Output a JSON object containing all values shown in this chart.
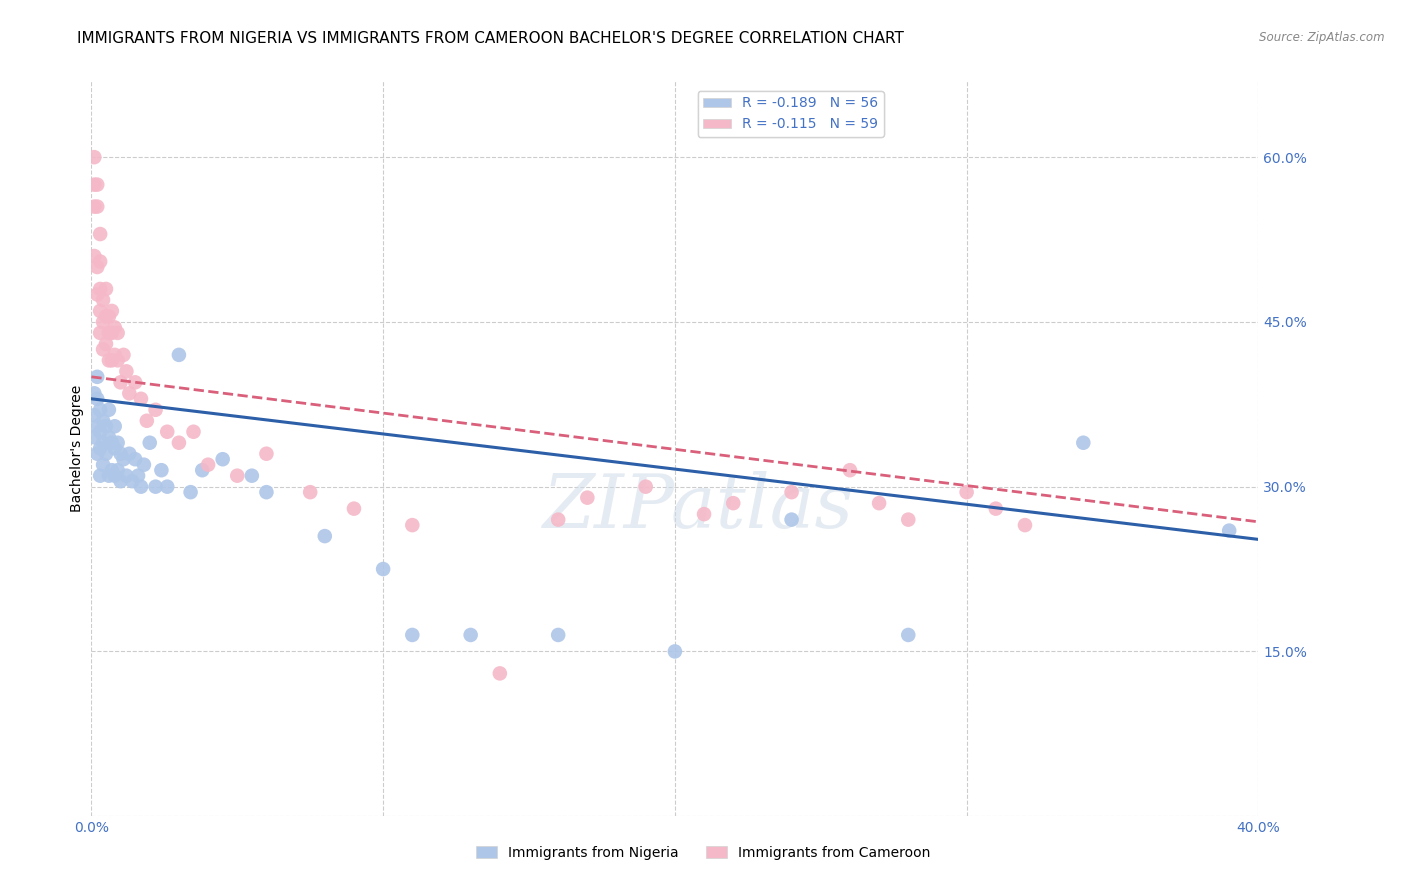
{
  "title": "IMMIGRANTS FROM NIGERIA VS IMMIGRANTS FROM CAMEROON BACHELOR'S DEGREE CORRELATION CHART",
  "source": "Source: ZipAtlas.com",
  "ylabel": "Bachelor's Degree",
  "y_ticks": [
    0.0,
    0.15,
    0.3,
    0.45,
    0.6
  ],
  "y_tick_labels": [
    "",
    "15.0%",
    "30.0%",
    "45.0%",
    "60.0%"
  ],
  "x_lim": [
    0.0,
    0.4
  ],
  "y_lim": [
    0.0,
    0.67
  ],
  "legend_blue_label": "R = -0.189   N = 56",
  "legend_pink_label": "R = -0.115   N = 59",
  "legend_bottom_blue": "Immigrants from Nigeria",
  "legend_bottom_pink": "Immigrants from Cameroon",
  "blue_color": "#aec6e8",
  "pink_color": "#f5b8c8",
  "line_blue_color": "#2c5fa8",
  "line_pink_color": "#d95f7a",
  "watermark": "ZIPatlas",
  "nigeria_x": [
    0.001,
    0.001,
    0.001,
    0.002,
    0.002,
    0.002,
    0.002,
    0.003,
    0.003,
    0.003,
    0.003,
    0.004,
    0.004,
    0.004,
    0.005,
    0.005,
    0.006,
    0.006,
    0.006,
    0.007,
    0.007,
    0.008,
    0.008,
    0.008,
    0.009,
    0.009,
    0.01,
    0.01,
    0.011,
    0.012,
    0.013,
    0.014,
    0.015,
    0.016,
    0.017,
    0.018,
    0.02,
    0.022,
    0.024,
    0.026,
    0.03,
    0.034,
    0.038,
    0.045,
    0.055,
    0.06,
    0.08,
    0.1,
    0.11,
    0.13,
    0.16,
    0.2,
    0.24,
    0.28,
    0.34,
    0.39
  ],
  "nigeria_y": [
    0.385,
    0.365,
    0.345,
    0.4,
    0.38,
    0.355,
    0.33,
    0.37,
    0.35,
    0.335,
    0.31,
    0.36,
    0.34,
    0.32,
    0.355,
    0.33,
    0.37,
    0.345,
    0.31,
    0.34,
    0.315,
    0.355,
    0.335,
    0.31,
    0.34,
    0.315,
    0.33,
    0.305,
    0.325,
    0.31,
    0.33,
    0.305,
    0.325,
    0.31,
    0.3,
    0.32,
    0.34,
    0.3,
    0.315,
    0.3,
    0.42,
    0.295,
    0.315,
    0.325,
    0.31,
    0.295,
    0.255,
    0.225,
    0.165,
    0.165,
    0.165,
    0.15,
    0.27,
    0.165,
    0.34,
    0.26
  ],
  "cameroon_x": [
    0.001,
    0.001,
    0.001,
    0.001,
    0.002,
    0.002,
    0.002,
    0.002,
    0.003,
    0.003,
    0.003,
    0.003,
    0.003,
    0.004,
    0.004,
    0.004,
    0.005,
    0.005,
    0.005,
    0.006,
    0.006,
    0.006,
    0.007,
    0.007,
    0.007,
    0.008,
    0.008,
    0.009,
    0.009,
    0.01,
    0.011,
    0.012,
    0.013,
    0.015,
    0.017,
    0.019,
    0.022,
    0.026,
    0.03,
    0.035,
    0.04,
    0.05,
    0.06,
    0.075,
    0.09,
    0.11,
    0.14,
    0.16,
    0.17,
    0.19,
    0.21,
    0.22,
    0.24,
    0.26,
    0.27,
    0.28,
    0.3,
    0.31,
    0.32
  ],
  "cameroon_y": [
    0.6,
    0.575,
    0.555,
    0.51,
    0.575,
    0.555,
    0.5,
    0.475,
    0.53,
    0.505,
    0.48,
    0.46,
    0.44,
    0.47,
    0.45,
    0.425,
    0.48,
    0.455,
    0.43,
    0.455,
    0.44,
    0.415,
    0.46,
    0.44,
    0.415,
    0.445,
    0.42,
    0.44,
    0.415,
    0.395,
    0.42,
    0.405,
    0.385,
    0.395,
    0.38,
    0.36,
    0.37,
    0.35,
    0.34,
    0.35,
    0.32,
    0.31,
    0.33,
    0.295,
    0.28,
    0.265,
    0.13,
    0.27,
    0.29,
    0.3,
    0.275,
    0.285,
    0.295,
    0.315,
    0.285,
    0.27,
    0.295,
    0.28,
    0.265
  ],
  "blue_line_x0": 0.0,
  "blue_line_x1": 0.4,
  "blue_line_y0": 0.38,
  "blue_line_y1": 0.252,
  "pink_line_x0": 0.0,
  "pink_line_x1": 0.4,
  "pink_line_y0": 0.4,
  "pink_line_y1": 0.268,
  "grid_color": "#cccccc",
  "title_fontsize": 11,
  "axis_label_fontsize": 10,
  "tick_fontsize": 10,
  "legend_fontsize": 10
}
